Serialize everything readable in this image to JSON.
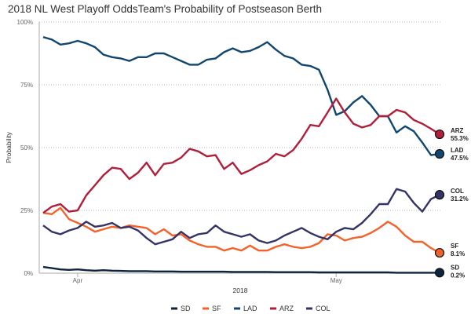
{
  "chart_data": {
    "type": "line",
    "title": "2018 NL West Playoff OddsTeam's Probability of Postseason Berth",
    "xlabel": "2018",
    "ylabel": "Probability",
    "ylim": [
      0,
      100
    ],
    "yticks": [
      "0%",
      "25%",
      "50%",
      "75%",
      "100%"
    ],
    "ytick_values": [
      0,
      25,
      50,
      75,
      100
    ],
    "xticks": [
      {
        "label": "Apr",
        "day_index": 4
      },
      {
        "label": "May",
        "day_index": 34
      }
    ],
    "x_start_date": "2018-03-28",
    "x_end_date": "2018-05-13",
    "grid": "horizontal-dotted",
    "legend_position": "bottom",
    "x": [
      0,
      1,
      2,
      3,
      4,
      5,
      6,
      7,
      8,
      9,
      10,
      11,
      12,
      13,
      14,
      15,
      16,
      17,
      18,
      19,
      20,
      21,
      22,
      23,
      24,
      25,
      26,
      27,
      28,
      29,
      30,
      31,
      32,
      33,
      34,
      35,
      36,
      37,
      38,
      39,
      40,
      41,
      42,
      43,
      44,
      45,
      46
    ],
    "series": [
      {
        "name": "SD",
        "color": "#0d2340",
        "end_label": "SD",
        "end_value_label": "0.2%",
        "values": [
          2.5,
          2,
          1.5,
          1.3,
          1.5,
          1.2,
          1,
          1.2,
          1,
          0.9,
          0.8,
          0.8,
          0.8,
          0.7,
          0.7,
          0.7,
          0.6,
          0.6,
          0.6,
          0.6,
          0.6,
          0.6,
          0.5,
          0.5,
          0.5,
          0.5,
          0.5,
          0.4,
          0.4,
          0.4,
          0.4,
          0.4,
          0.3,
          0.3,
          0.3,
          0.3,
          0.3,
          0.3,
          0.3,
          0.3,
          0.3,
          0.2,
          0.2,
          0.2,
          0.2,
          0.2,
          0.2
        ]
      },
      {
        "name": "SF",
        "color": "#f4622b",
        "end_label": "SF",
        "end_value_label": "8.1%",
        "values": [
          24,
          23.5,
          26,
          21.5,
          20,
          18.5,
          16.5,
          17.5,
          18.5,
          18,
          19,
          18.5,
          18,
          15.5,
          17.5,
          15,
          15.5,
          13,
          11.5,
          10.5,
          10.5,
          9,
          10,
          9,
          11,
          9,
          9,
          10.5,
          11.5,
          10.5,
          10,
          10.5,
          12,
          15.5,
          15,
          13,
          14,
          14.5,
          16,
          18,
          20.5,
          18.5,
          15,
          12.5,
          12.5,
          10,
          8.1
        ]
      },
      {
        "name": "LAD",
        "color": "#11466f",
        "end_label": "LAD",
        "end_value_label": "47.5%",
        "values": [
          94,
          93,
          91,
          91.5,
          92.5,
          91.5,
          90,
          87,
          86,
          85.5,
          84.5,
          86,
          86,
          87.5,
          87.5,
          86,
          84.5,
          83,
          83,
          85,
          85.5,
          88,
          89.5,
          88,
          88.5,
          90,
          92,
          89,
          86.5,
          85.5,
          83,
          82.5,
          81,
          73,
          63,
          64.5,
          68,
          70.5,
          67,
          62.5,
          62.5,
          56,
          58.5,
          56.5,
          52,
          47,
          47.5
        ]
      },
      {
        "name": "ARZ",
        "color": "#b01e3a",
        "end_label": "ARZ",
        "end_value_label": "55.3%",
        "values": [
          24,
          26.5,
          27.5,
          24.5,
          25,
          31,
          35,
          39,
          42,
          41.5,
          37.5,
          40,
          44,
          39,
          43.5,
          44,
          46,
          49.5,
          48.5,
          46.5,
          47,
          41.5,
          44,
          39.5,
          41,
          43,
          44.5,
          47.5,
          46.5,
          49,
          53.5,
          59,
          58.5,
          64,
          69.5,
          64,
          59.5,
          58,
          59,
          62.5,
          62.5,
          65,
          64,
          61,
          59.5,
          57.5,
          55.3
        ]
      },
      {
        "name": "COL",
        "color": "#333366",
        "end_label": "COL",
        "end_value_label": "31.2%",
        "values": [
          19,
          16.5,
          15.5,
          17,
          18,
          20.5,
          18.5,
          19,
          20,
          18,
          18.5,
          17,
          14,
          11.5,
          12.5,
          13.5,
          16.5,
          14,
          15.5,
          16,
          19,
          16.5,
          15.5,
          14.5,
          15.5,
          13,
          12,
          13,
          15,
          16.5,
          18,
          16,
          14.5,
          13.5,
          16.5,
          18,
          17.5,
          20,
          23.5,
          27.5,
          27.5,
          33.5,
          32.5,
          28,
          24.5,
          29.5,
          31.2
        ]
      }
    ]
  }
}
